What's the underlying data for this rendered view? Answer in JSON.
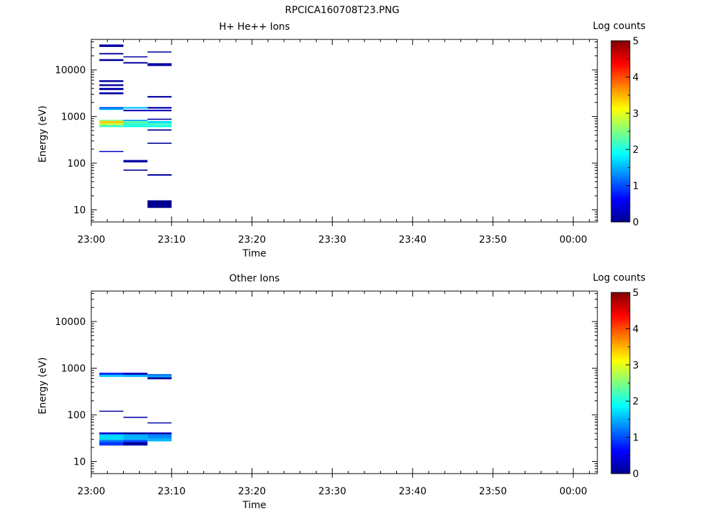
{
  "figure_title": "RPCICA160708T23.PNG",
  "colormap": [
    "#00008f",
    "#0000ff",
    "#0080ff",
    "#00ffff",
    "#80ff80",
    "#ffff00",
    "#ff8000",
    "#ff0000",
    "#800000"
  ],
  "chart_data": [
    {
      "type": "heatmap",
      "title": "H+ He++ Ions",
      "xlabel": "Time",
      "ylabel": "Energy (eV)",
      "x_ticks": [
        "23:00",
        "23:10",
        "23:20",
        "23:30",
        "23:40",
        "23:50",
        "00:00"
      ],
      "y_ticks": [
        "10",
        "100",
        "1000",
        "10000"
      ],
      "y_scale": "log",
      "ylim": [
        5.5,
        45000
      ],
      "xlim": [
        "23:00",
        "00:03"
      ],
      "colorbar": {
        "label": "Log counts",
        "ticks": [
          "0",
          "1",
          "2",
          "3",
          "4",
          "5"
        ],
        "range": [
          0,
          5
        ]
      },
      "cells": [
        {
          "t0": "23:01",
          "t1": "23:04",
          "e0": 31000,
          "e1": 35000,
          "v": 0.1
        },
        {
          "t0": "23:01",
          "t1": "23:04",
          "e0": 21500,
          "e1": 23000,
          "v": 0.1
        },
        {
          "t0": "23:01",
          "t1": "23:04",
          "e0": 15500,
          "e1": 17000,
          "v": 0.1
        },
        {
          "t0": "23:01",
          "t1": "23:04",
          "e0": 5500,
          "e1": 6000,
          "v": 0.1
        },
        {
          "t0": "23:01",
          "t1": "23:04",
          "e0": 4500,
          "e1": 4900,
          "v": 0.1
        },
        {
          "t0": "23:01",
          "t1": "23:04",
          "e0": 3700,
          "e1": 4100,
          "v": 0.1
        },
        {
          "t0": "23:01",
          "t1": "23:04",
          "e0": 3000,
          "e1": 3300,
          "v": 0.1
        },
        {
          "t0": "23:01",
          "t1": "23:04",
          "e0": 1480,
          "e1": 1600,
          "v": 1.1
        },
        {
          "t0": "23:01",
          "t1": "23:04",
          "e0": 1380,
          "e1": 1480,
          "v": 1.5
        },
        {
          "t0": "23:01",
          "t1": "23:04",
          "e0": 800,
          "e1": 850,
          "v": 2.5
        },
        {
          "t0": "23:01",
          "t1": "23:04",
          "e0": 720,
          "e1": 800,
          "v": 3.4
        },
        {
          "t0": "23:01",
          "t1": "23:04",
          "e0": 650,
          "e1": 720,
          "v": 2.8
        },
        {
          "t0": "23:01",
          "t1": "23:04",
          "e0": 590,
          "e1": 650,
          "v": 2.2
        },
        {
          "t0": "23:01",
          "t1": "23:04",
          "e0": 175,
          "e1": 182,
          "v": 0.3
        },
        {
          "t0": "23:04",
          "t1": "23:07",
          "e0": 18500,
          "e1": 19500,
          "v": 0.1
        },
        {
          "t0": "23:04",
          "t1": "23:07",
          "e0": 13700,
          "e1": 14700,
          "v": 0.1
        },
        {
          "t0": "23:04",
          "t1": "23:07",
          "e0": 1480,
          "e1": 1600,
          "v": 1.6
        },
        {
          "t0": "23:04",
          "t1": "23:07",
          "e0": 1300,
          "e1": 1400,
          "v": 0.3
        },
        {
          "t0": "23:04",
          "t1": "23:07",
          "e0": 800,
          "e1": 850,
          "v": 1.4
        },
        {
          "t0": "23:04",
          "t1": "23:07",
          "e0": 720,
          "e1": 800,
          "v": 2.3
        },
        {
          "t0": "23:04",
          "t1": "23:07",
          "e0": 650,
          "e1": 720,
          "v": 2.1
        },
        {
          "t0": "23:04",
          "t1": "23:07",
          "e0": 590,
          "e1": 650,
          "v": 2.0
        },
        {
          "t0": "23:04",
          "t1": "23:07",
          "e0": 104,
          "e1": 117,
          "v": 0.1
        },
        {
          "t0": "23:04",
          "t1": "23:07",
          "e0": 69,
          "e1": 73,
          "v": 0.1
        },
        {
          "t0": "23:07",
          "t1": "23:10",
          "e0": 23500,
          "e1": 24800,
          "v": 0.1
        },
        {
          "t0": "23:07",
          "t1": "23:10",
          "e0": 12100,
          "e1": 13900,
          "v": 0.1
        },
        {
          "t0": "23:07",
          "t1": "23:10",
          "e0": 2550,
          "e1": 2750,
          "v": 0.1
        },
        {
          "t0": "23:07",
          "t1": "23:10",
          "e0": 1480,
          "e1": 1600,
          "v": 0.2
        },
        {
          "t0": "23:07",
          "t1": "23:10",
          "e0": 1300,
          "e1": 1400,
          "v": 0.2
        },
        {
          "t0": "23:07",
          "t1": "23:10",
          "e0": 850,
          "e1": 900,
          "v": 0.1
        },
        {
          "t0": "23:07",
          "t1": "23:10",
          "e0": 720,
          "e1": 800,
          "v": 1.7
        },
        {
          "t0": "23:07",
          "t1": "23:10",
          "e0": 650,
          "e1": 720,
          "v": 2.2
        },
        {
          "t0": "23:07",
          "t1": "23:10",
          "e0": 590,
          "e1": 650,
          "v": 2.0
        },
        {
          "t0": "23:07",
          "t1": "23:10",
          "e0": 500,
          "e1": 530,
          "v": 0.1
        },
        {
          "t0": "23:07",
          "t1": "23:10",
          "e0": 260,
          "e1": 275,
          "v": 0.1
        },
        {
          "t0": "23:07",
          "t1": "23:10",
          "e0": 54,
          "e1": 58,
          "v": 0.1
        },
        {
          "t0": "23:07",
          "t1": "23:10",
          "e0": 11,
          "e1": 16,
          "v": 0.0
        }
      ]
    },
    {
      "type": "heatmap",
      "title": "Other Ions",
      "xlabel": "Time",
      "ylabel": "Energy (eV)",
      "x_ticks": [
        "23:00",
        "23:10",
        "23:20",
        "23:30",
        "23:40",
        "23:50",
        "00:00"
      ],
      "y_ticks": [
        "10",
        "100",
        "1000",
        "10000"
      ],
      "y_scale": "log",
      "ylim": [
        5.5,
        45000
      ],
      "xlim": [
        "23:00",
        "00:03"
      ],
      "colorbar": {
        "label": "Log counts",
        "ticks": [
          "0",
          "1",
          "2",
          "3",
          "4",
          "5"
        ],
        "range": [
          0,
          5
        ]
      },
      "cells": [
        {
          "t0": "23:01",
          "t1": "23:04",
          "e0": 720,
          "e1": 800,
          "v": 0.8
        },
        {
          "t0": "23:01",
          "t1": "23:04",
          "e0": 650,
          "e1": 720,
          "v": 1.6
        },
        {
          "t0": "23:01",
          "t1": "23:04",
          "e0": 118,
          "e1": 123,
          "v": 0.1
        },
        {
          "t0": "23:01",
          "t1": "23:04",
          "e0": 38,
          "e1": 42,
          "v": 0.4
        },
        {
          "t0": "23:01",
          "t1": "23:04",
          "e0": 29,
          "e1": 38,
          "v": 1.7
        },
        {
          "t0": "23:01",
          "t1": "23:04",
          "e0": 26,
          "e1": 29,
          "v": 1.2
        },
        {
          "t0": "23:01",
          "t1": "23:04",
          "e0": 22,
          "e1": 26,
          "v": 0.9
        },
        {
          "t0": "23:04",
          "t1": "23:07",
          "e0": 720,
          "e1": 800,
          "v": 0.3
        },
        {
          "t0": "23:04",
          "t1": "23:07",
          "e0": 650,
          "e1": 720,
          "v": 1.5
        },
        {
          "t0": "23:04",
          "t1": "23:07",
          "e0": 86,
          "e1": 91,
          "v": 0.1
        },
        {
          "t0": "23:04",
          "t1": "23:07",
          "e0": 38,
          "e1": 42,
          "v": 0.1
        },
        {
          "t0": "23:04",
          "t1": "23:07",
          "e0": 29,
          "e1": 38,
          "v": 1.5
        },
        {
          "t0": "23:04",
          "t1": "23:07",
          "e0": 26,
          "e1": 29,
          "v": 1.0
        },
        {
          "t0": "23:04",
          "t1": "23:07",
          "e0": 22,
          "e1": 26,
          "v": 0.1
        },
        {
          "t0": "23:07",
          "t1": "23:10",
          "e0": 680,
          "e1": 750,
          "v": 1.2
        },
        {
          "t0": "23:07",
          "t1": "23:10",
          "e0": 640,
          "e1": 680,
          "v": 1.5
        },
        {
          "t0": "23:07",
          "t1": "23:10",
          "e0": 580,
          "e1": 640,
          "v": 0.1
        },
        {
          "t0": "23:07",
          "t1": "23:10",
          "e0": 66,
          "e1": 69,
          "v": 0.1
        },
        {
          "t0": "23:07",
          "t1": "23:10",
          "e0": 38,
          "e1": 42,
          "v": 0.2
        },
        {
          "t0": "23:07",
          "t1": "23:10",
          "e0": 31,
          "e1": 38,
          "v": 1.3
        },
        {
          "t0": "23:07",
          "t1": "23:10",
          "e0": 27,
          "e1": 31,
          "v": 1.5
        }
      ]
    }
  ]
}
